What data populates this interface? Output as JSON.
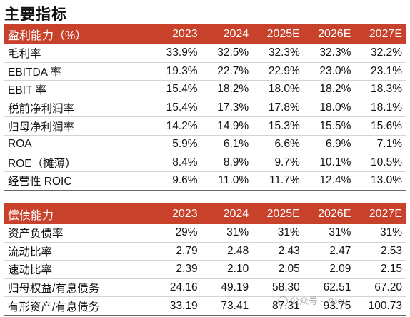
{
  "title": "主要指标",
  "profitability": {
    "header": "盈利能力（%）",
    "years": [
      "2023",
      "2024",
      "2025E",
      "2026E",
      "2027E"
    ],
    "rows": [
      {
        "label": "毛利率",
        "values": [
          "33.9%",
          "32.5%",
          "32.3%",
          "32.3%",
          "32.2%"
        ]
      },
      {
        "label": "EBITDA 率",
        "values": [
          "19.3%",
          "22.7%",
          "22.9%",
          "23.0%",
          "23.1%"
        ]
      },
      {
        "label": "EBIT 率",
        "values": [
          "15.4%",
          "18.2%",
          "18.0%",
          "18.2%",
          "18.3%"
        ]
      },
      {
        "label": "税前净利润率",
        "values": [
          "15.4%",
          "17.3%",
          "17.8%",
          "18.0%",
          "18.1%"
        ]
      },
      {
        "label": "归母净利润率",
        "values": [
          "14.2%",
          "14.9%",
          "15.3%",
          "15.5%",
          "15.6%"
        ]
      },
      {
        "label": "ROA",
        "values": [
          "5.9%",
          "6.1%",
          "6.6%",
          "6.9%",
          "7.1%"
        ]
      },
      {
        "label": "ROE（摊薄）",
        "values": [
          "8.4%",
          "8.9%",
          "9.7%",
          "10.1%",
          "10.5%"
        ]
      },
      {
        "label": "经营性 ROIC",
        "values": [
          "9.6%",
          "11.0%",
          "11.7%",
          "12.4%",
          "13.0%"
        ]
      }
    ]
  },
  "solvency": {
    "header": "偿债能力",
    "years": [
      "2023",
      "2024",
      "2025E",
      "2026E",
      "2027E"
    ],
    "rows": [
      {
        "label": "资产负债率",
        "values": [
          "29%",
          "31%",
          "31%",
          "31%",
          "31%"
        ]
      },
      {
        "label": "流动比率",
        "values": [
          "2.79",
          "2.48",
          "2.43",
          "2.47",
          "2.53"
        ]
      },
      {
        "label": "速动比率",
        "values": [
          "2.39",
          "2.10",
          "2.05",
          "2.09",
          "2.15"
        ]
      },
      {
        "label": "归母权益/有息债务",
        "values": [
          "24.16",
          "49.19",
          "58.30",
          "62.51",
          "67.20"
        ]
      },
      {
        "label": "有形资产/有息债务",
        "values": [
          "33.19",
          "73.41",
          "87.31",
          "93.75",
          "100.73"
        ]
      }
    ]
  },
  "watermark": "公众号 · 7Bov"
}
